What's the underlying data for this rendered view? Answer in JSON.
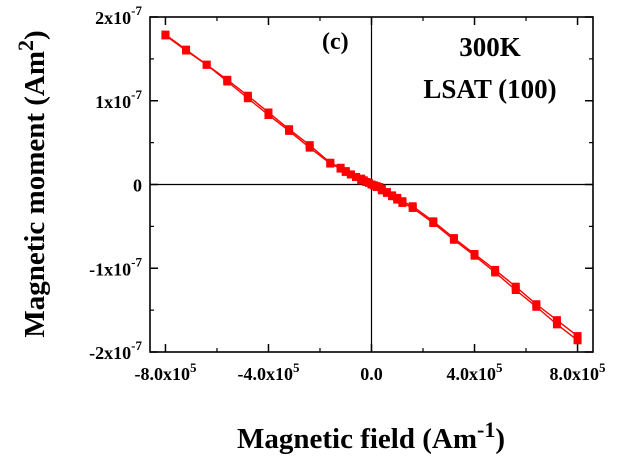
{
  "chart_data": {
    "type": "line",
    "xlabel": "Magnetic field (Am",
    "xlabel_sup": "-1",
    "xlabel_close": ")",
    "ylabel": "Magnetic moment (Am",
    "ylabel_sup": "2",
    "ylabel_close": ")",
    "xlim": [
      -860000,
      860000
    ],
    "ylim": [
      -2e-07,
      2e-07
    ],
    "x_ticks": [
      {
        "value": -800000,
        "base": "-8.0x10",
        "exp": "5"
      },
      {
        "value": -400000,
        "base": "-4.0x10",
        "exp": "5"
      },
      {
        "value": 0,
        "base": "0.0",
        "exp": ""
      },
      {
        "value": 400000,
        "base": "4.0x10",
        "exp": "5"
      },
      {
        "value": 800000,
        "base": "8.0x10",
        "exp": "5"
      }
    ],
    "y_ticks": [
      {
        "value": 2e-07,
        "base": "2x10",
        "exp": "-7"
      },
      {
        "value": 1e-07,
        "base": "1x10",
        "exp": "-7"
      },
      {
        "value": 0,
        "base": "0",
        "exp": ""
      },
      {
        "value": -1e-07,
        "base": "-1x10",
        "exp": "-7"
      },
      {
        "value": -2e-07,
        "base": "-2x10",
        "exp": "-7"
      }
    ],
    "annotations": {
      "panel": "(c)",
      "temperature": "300K",
      "substrate": "LSAT (100)"
    },
    "series": [
      {
        "color": "#ff0000",
        "marker": "square",
        "x": [
          -800000,
          -720000,
          -640000,
          -560000,
          -480000,
          -400000,
          -320000,
          -240000,
          -160000,
          -120000,
          -100000,
          -80000,
          -60000,
          -40000,
          -30000,
          -20000,
          -10000,
          0,
          10000,
          20000,
          30000,
          40000,
          60000,
          80000,
          100000,
          120000,
          160000,
          240000,
          320000,
          400000,
          480000,
          560000,
          640000,
          720000,
          800000
        ],
        "y": [
          1.79e-07,
          1.61e-07,
          1.43e-07,
          1.25e-07,
          1.06e-07,
          8.6e-08,
          6.6e-08,
          4.7e-08,
          2.6e-08,
          2e-08,
          1.6e-08,
          1.2e-08,
          9e-09,
          7e-09,
          5e-09,
          3e-09,
          2e-09,
          0.0,
          -1e-09,
          -2e-09,
          -3e-09,
          -5e-09,
          -9e-09,
          -1.3e-08,
          -1.6e-08,
          -2e-08,
          -2.6e-08,
          -4.4e-08,
          -6.4e-08,
          -8.3e-08,
          -1.02e-07,
          -1.22e-07,
          -1.43e-07,
          -1.62e-07,
          -1.81e-07
        ]
      },
      {
        "color": "#ff0000",
        "marker": "square",
        "x": [
          800000,
          720000,
          640000,
          560000,
          480000,
          400000,
          320000,
          240000,
          160000,
          120000,
          100000,
          80000,
          60000,
          40000,
          20000,
          0,
          -20000,
          -40000,
          -60000,
          -80000,
          -100000,
          -120000,
          -160000,
          -240000,
          -320000,
          -400000,
          -480000,
          -560000,
          -640000,
          -720000,
          -800000
        ],
        "y": [
          -1.86e-07,
          -1.67e-07,
          -1.46e-07,
          -1.26e-07,
          -1.05e-07,
          -8.5e-08,
          -6.6e-08,
          -4.6e-08,
          -2.8e-08,
          -2.2e-08,
          -1.8e-08,
          -1.4e-08,
          -1e-08,
          -7e-09,
          -3e-09,
          0.0,
          3e-09,
          5e-09,
          9e-09,
          1.2e-08,
          1.5e-08,
          1.9e-08,
          2.5e-08,
          4.4e-08,
          6.4e-08,
          8.3e-08,
          1.03e-07,
          1.23e-07,
          1.43e-07,
          1.6e-07,
          1.78e-07
        ]
      }
    ]
  }
}
